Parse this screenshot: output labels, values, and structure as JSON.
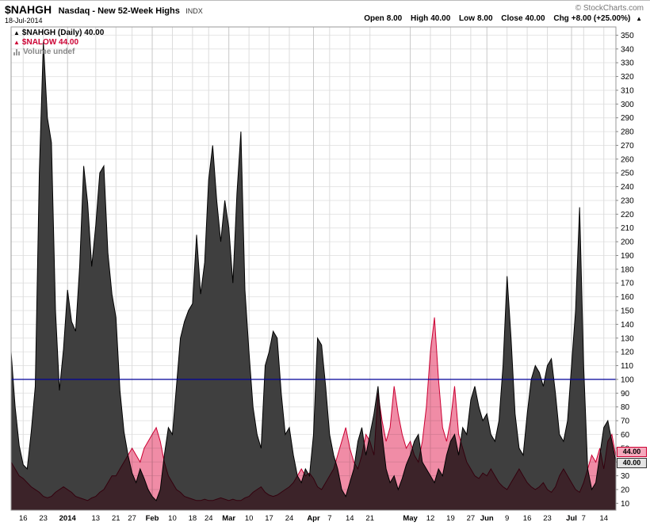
{
  "header": {
    "symbol": "$NAHGH",
    "name": "Nasdaq - New 52-Week Highs",
    "exchange": "INDX",
    "date": "18-Jul-2014",
    "copyright": "© StockCharts.com",
    "quote": {
      "items": [
        {
          "label": "Open",
          "value": "8.00"
        },
        {
          "label": "High",
          "value": "40.00"
        },
        {
          "label": "Low",
          "value": "8.00"
        },
        {
          "label": "Close",
          "value": "40.00"
        },
        {
          "label": "Chg",
          "value": "+8.00 (+25.00%)"
        }
      ],
      "direction": "▲"
    }
  },
  "legend": {
    "items": [
      {
        "icon": "triangle-up-icon",
        "text": "$NAHGH (Daily) 40.00",
        "color": "#000000"
      },
      {
        "icon": "triangle-up-icon",
        "text": "$NALOW 44.00",
        "color": "#cc0033"
      },
      {
        "icon": "volume-bars-icon",
        "text": "Volume undef",
        "color": "#888888"
      }
    ]
  },
  "price_tags": [
    {
      "text": "44.00",
      "value": 44,
      "bg": "#f5a8bc",
      "border": "#cc0033",
      "color": "#000000"
    },
    {
      "text": "40.00",
      "value": 40,
      "bg": "#e4e4e4",
      "border": "#333333",
      "color": "#000000"
    }
  ],
  "chart_data": {
    "type": "area",
    "title": "$NAHGH Nasdaq - New 52-Week Highs (INDX) Daily",
    "subtitle": "18-Jul-2014",
    "legend_position": "top-left",
    "grid": true,
    "ylim": [
      5,
      356
    ],
    "y_axis": {
      "min": 10,
      "max": 350,
      "step": 10,
      "side": "right"
    },
    "hline": {
      "value": 100,
      "color": "#000099"
    },
    "x_ticks": [
      {
        "i": 3,
        "label": "16"
      },
      {
        "i": 8,
        "label": "23"
      },
      {
        "i": 14,
        "label": "2014",
        "bold": true
      },
      {
        "i": 21,
        "label": "13"
      },
      {
        "i": 26,
        "label": "21"
      },
      {
        "i": 30,
        "label": "27"
      },
      {
        "i": 35,
        "label": "Feb",
        "bold": true
      },
      {
        "i": 40,
        "label": "10"
      },
      {
        "i": 45,
        "label": "18"
      },
      {
        "i": 49,
        "label": "24"
      },
      {
        "i": 54,
        "label": "Mar",
        "bold": true
      },
      {
        "i": 59,
        "label": "10"
      },
      {
        "i": 64,
        "label": "17"
      },
      {
        "i": 69,
        "label": "24"
      },
      {
        "i": 75,
        "label": "Apr",
        "bold": true
      },
      {
        "i": 79,
        "label": "7"
      },
      {
        "i": 84,
        "label": "14"
      },
      {
        "i": 89,
        "label": "21"
      },
      {
        "i": 99,
        "label": "May",
        "bold": true
      },
      {
        "i": 104,
        "label": "12"
      },
      {
        "i": 109,
        "label": "19"
      },
      {
        "i": 114,
        "label": "27"
      },
      {
        "i": 118,
        "label": "Jun",
        "bold": true
      },
      {
        "i": 123,
        "label": "9"
      },
      {
        "i": 128,
        "label": "16"
      },
      {
        "i": 133,
        "label": "23"
      },
      {
        "i": 139,
        "label": "Jul",
        "bold": true
      },
      {
        "i": 142,
        "label": "7"
      },
      {
        "i": 147,
        "label": "14"
      }
    ],
    "series": [
      {
        "name": "$NAHGH",
        "fill": "#3f3f3f",
        "stroke": "#000000",
        "last": 40,
        "values": [
          120,
          80,
          52,
          38,
          35,
          62,
          95,
          250,
          345,
          290,
          272,
          150,
          92,
          122,
          165,
          142,
          135,
          182,
          255,
          228,
          182,
          212,
          250,
          255,
          192,
          162,
          145,
          92,
          62,
          45,
          32,
          25,
          35,
          28,
          20,
          15,
          12,
          20,
          45,
          65,
          60,
          95,
          130,
          142,
          150,
          155,
          205,
          162,
          185,
          245,
          270,
          230,
          200,
          230,
          210,
          170,
          235,
          280,
          165,
          120,
          80,
          60,
          50,
          110,
          120,
          135,
          130,
          90,
          60,
          65,
          45,
          30,
          25,
          35,
          30,
          60,
          130,
          125,
          95,
          60,
          45,
          35,
          20,
          15,
          25,
          35,
          55,
          65,
          45,
          60,
          75,
          95,
          60,
          35,
          25,
          30,
          20,
          28,
          38,
          45,
          55,
          60,
          40,
          35,
          30,
          25,
          35,
          30,
          45,
          55,
          60,
          45,
          65,
          60,
          85,
          95,
          80,
          70,
          75,
          60,
          55,
          70,
          110,
          175,
          130,
          75,
          50,
          45,
          75,
          100,
          110,
          105,
          95,
          110,
          115,
          90,
          60,
          55,
          70,
          110,
          150,
          225,
          110,
          35,
          20,
          25,
          45,
          65,
          70,
          55,
          40
        ]
      },
      {
        "name": "$NALOW",
        "fill": "#f08ca6",
        "stroke": "#cc0033",
        "last": 44,
        "values": [
          40,
          35,
          30,
          28,
          25,
          22,
          20,
          18,
          15,
          14,
          15,
          18,
          20,
          22,
          20,
          18,
          15,
          14,
          13,
          12,
          14,
          15,
          18,
          20,
          25,
          30,
          30,
          35,
          40,
          45,
          50,
          45,
          40,
          50,
          55,
          60,
          65,
          55,
          40,
          30,
          25,
          20,
          18,
          15,
          14,
          13,
          12,
          12,
          13,
          12,
          12,
          13,
          14,
          13,
          12,
          13,
          12,
          12,
          14,
          15,
          18,
          20,
          22,
          18,
          16,
          15,
          16,
          18,
          20,
          22,
          25,
          30,
          35,
          30,
          32,
          28,
          22,
          20,
          25,
          30,
          35,
          45,
          55,
          65,
          50,
          40,
          35,
          45,
          60,
          55,
          45,
          90,
          70,
          55,
          65,
          95,
          75,
          60,
          50,
          55,
          45,
          40,
          55,
          80,
          120,
          145,
          100,
          65,
          55,
          70,
          95,
          60,
          50,
          40,
          35,
          30,
          28,
          32,
          30,
          35,
          30,
          25,
          22,
          20,
          25,
          30,
          35,
          30,
          25,
          22,
          20,
          22,
          25,
          20,
          18,
          22,
          30,
          35,
          30,
          25,
          20,
          18,
          25,
          35,
          45,
          40,
          50,
          35,
          55,
          60,
          44
        ]
      }
    ]
  }
}
